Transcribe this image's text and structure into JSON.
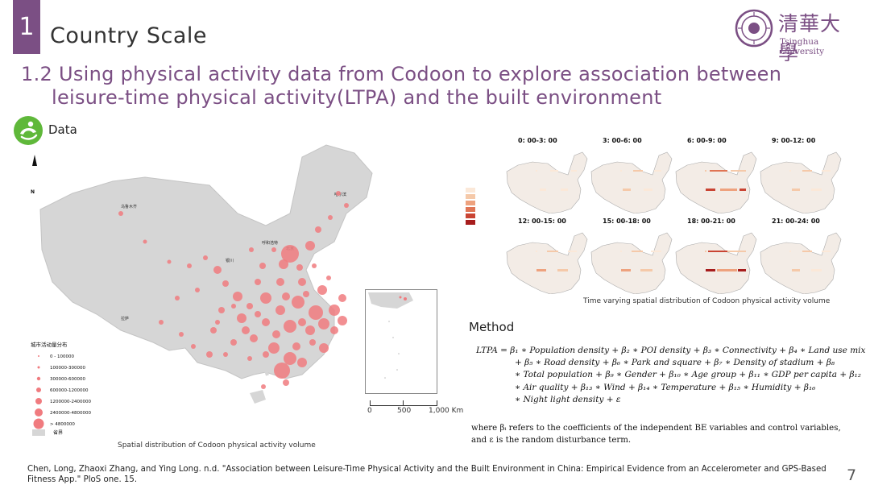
{
  "slide": {
    "section_number": "1",
    "section_title": "Country Scale",
    "subtitle_line1": "1.2 Using physical activity data from Codoon to explore association between",
    "subtitle_line2": "leisure-time physical activity(LTPA) and the built environment",
    "data_label": "Data",
    "page_number": "7"
  },
  "logo": {
    "chinese": "清華大學",
    "english": "Tsinghua University",
    "color": "#7b4f84"
  },
  "main_map": {
    "north_label": "N",
    "legend_title": "城市活动量分布",
    "legend_items": [
      "0 - 100000",
      "100000-300000",
      "300000-600000",
      "600000-1200000",
      "1200000-2400000",
      "2400000-4800000",
      "> 4800000"
    ],
    "legend_boundary": "省界",
    "scale_labels": [
      "0",
      "500",
      "1,000 Km"
    ],
    "caption": "Spatial distribution of Codoon physical activity volume",
    "bubble_color": "#f07b7f",
    "land_color": "#d6d6d6"
  },
  "small_maps": {
    "panels": [
      {
        "label": "0: 00-3: 00",
        "level": 0.15
      },
      {
        "label": "3: 00-6: 00",
        "level": 0.25
      },
      {
        "label": "6: 00-9: 00",
        "level": 0.75
      },
      {
        "label": "9: 00-12: 00",
        "level": 0.3
      },
      {
        "label": "12: 00-15: 00",
        "level": 0.35
      },
      {
        "label": "15: 00-18: 00",
        "level": 0.4
      },
      {
        "label": "18: 00-21: 00",
        "level": 0.9
      },
      {
        "label": "21: 00-24: 00",
        "level": 0.3
      }
    ],
    "legend_colors": [
      "#fbe8d8",
      "#f5c9a9",
      "#eea27e",
      "#e07555",
      "#c94433",
      "#a71d1d"
    ],
    "caption": "Time varying spatial distribution of Codoon physical activity volume"
  },
  "method": {
    "heading": "Method",
    "formula_lines": [
      "LTPA = β₁ ∗ Population density + β₂ ∗ POI density + β₃ ∗ Connectivity + β₄ ∗ Land use mix",
      "+ β₅ ∗ Road density + β₆ ∗ Park and square + β₇ ∗ Density of stadium + β₈",
      "∗ Total population + β₉ ∗ Gender + β₁₀ ∗ Age group + β₁₁ ∗ GDP per capita + β₁₂",
      "∗ Air quality + β₁₃ ∗ Wind + β₁₄ ∗ Temperature + β₁₅ ∗ Humidity + β₁₆",
      "∗ Night light density + ε"
    ],
    "where_text": "where βᵢ refers to the coefficients of the independent BE variables and control variables, and ε is the random disturbance term."
  },
  "citation": "Chen, Long, Zhaoxi Zhang, and Ying Long. n.d. \"Association between Leisure-Time Physical Activity and the Built Environment in China: Empirical Evidence from an Accelerometer and GPS-Based Fitness App.\" PloS one. 15."
}
